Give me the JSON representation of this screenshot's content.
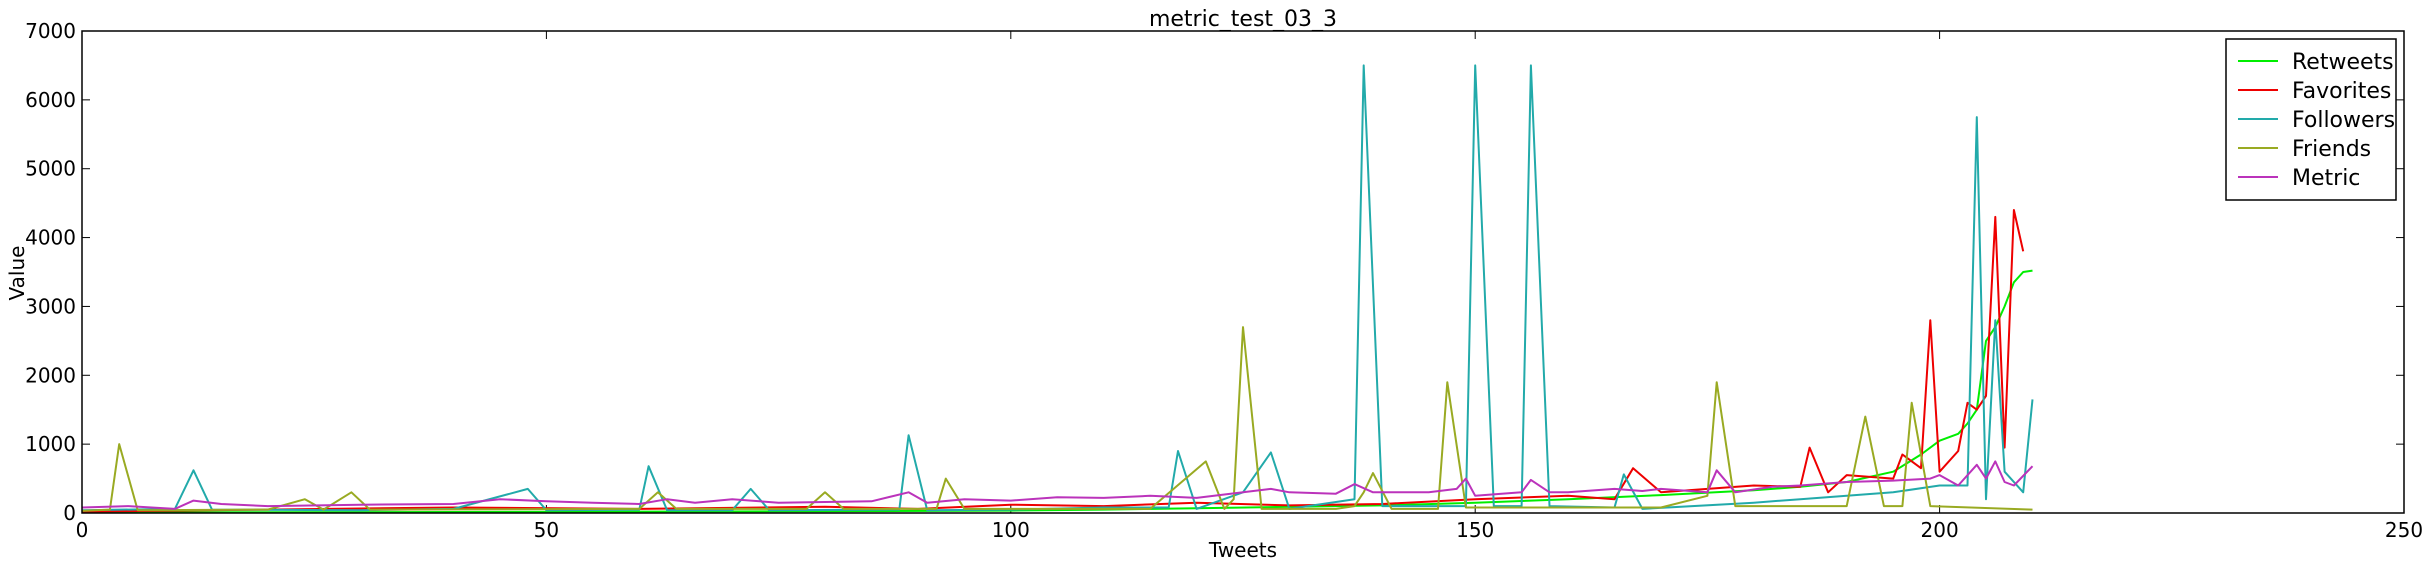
{
  "chart_data": {
    "type": "line",
    "title": "metric_test_03_3",
    "xlabel": "Tweets",
    "ylabel": "Value",
    "xlim": [
      0,
      250
    ],
    "ylim": [
      0,
      7000
    ],
    "xticks": [
      0,
      50,
      100,
      150,
      200,
      250
    ],
    "yticks": [
      0,
      1000,
      2000,
      3000,
      4000,
      5000,
      6000,
      7000
    ],
    "grid": false,
    "legend": "top-right",
    "series": [
      {
        "name": "Retweets",
        "color": "#00ee00",
        "points": [
          [
            0,
            10
          ],
          [
            20,
            12
          ],
          [
            40,
            15
          ],
          [
            60,
            20
          ],
          [
            80,
            25
          ],
          [
            100,
            35
          ],
          [
            110,
            50
          ],
          [
            120,
            70
          ],
          [
            130,
            90
          ],
          [
            140,
            110
          ],
          [
            150,
            150
          ],
          [
            160,
            200
          ],
          [
            170,
            260
          ],
          [
            180,
            330
          ],
          [
            185,
            380
          ],
          [
            190,
            450
          ],
          [
            195,
            600
          ],
          [
            198,
            850
          ],
          [
            200,
            1050
          ],
          [
            202,
            1150
          ],
          [
            203,
            1300
          ],
          [
            204,
            1500
          ],
          [
            205,
            2500
          ],
          [
            206,
            2700
          ],
          [
            207,
            3000
          ],
          [
            208,
            3350
          ],
          [
            209,
            3500
          ],
          [
            210,
            3520
          ]
        ]
      },
      {
        "name": "Favorites",
        "color": "#ee0000",
        "points": [
          [
            0,
            20
          ],
          [
            40,
            80
          ],
          [
            60,
            60
          ],
          [
            80,
            90
          ],
          [
            90,
            60
          ],
          [
            100,
            120
          ],
          [
            110,
            100
          ],
          [
            120,
            150
          ],
          [
            130,
            110
          ],
          [
            140,
            130
          ],
          [
            150,
            200
          ],
          [
            160,
            250
          ],
          [
            165,
            200
          ],
          [
            167,
            650
          ],
          [
            170,
            300
          ],
          [
            175,
            350
          ],
          [
            180,
            400
          ],
          [
            185,
            380
          ],
          [
            186,
            950
          ],
          [
            188,
            300
          ],
          [
            190,
            550
          ],
          [
            195,
            500
          ],
          [
            196,
            850
          ],
          [
            198,
            650
          ],
          [
            199,
            2800
          ],
          [
            200,
            600
          ],
          [
            202,
            900
          ],
          [
            203,
            1600
          ],
          [
            204,
            1500
          ],
          [
            205,
            1700
          ],
          [
            206,
            4300
          ],
          [
            207,
            950
          ],
          [
            208,
            4400
          ],
          [
            209,
            3800
          ]
        ]
      },
      {
        "name": "Followers",
        "color": "#22aaaa",
        "points": [
          [
            0,
            40
          ],
          [
            10,
            60
          ],
          [
            12,
            620
          ],
          [
            14,
            50
          ],
          [
            30,
            40
          ],
          [
            40,
            60
          ],
          [
            48,
            350
          ],
          [
            50,
            40
          ],
          [
            60,
            50
          ],
          [
            61,
            680
          ],
          [
            63,
            40
          ],
          [
            70,
            40
          ],
          [
            72,
            350
          ],
          [
            74,
            40
          ],
          [
            88,
            50
          ],
          [
            89,
            1130
          ],
          [
            91,
            40
          ],
          [
            100,
            50
          ],
          [
            110,
            80
          ],
          [
            117,
            80
          ],
          [
            118,
            900
          ],
          [
            120,
            60
          ],
          [
            125,
            300
          ],
          [
            128,
            880
          ],
          [
            130,
            60
          ],
          [
            137,
            200
          ],
          [
            138,
            6500
          ],
          [
            140,
            100
          ],
          [
            149,
            100
          ],
          [
            150,
            6500
          ],
          [
            152,
            100
          ],
          [
            155,
            100
          ],
          [
            156,
            6500
          ],
          [
            158,
            100
          ],
          [
            165,
            80
          ],
          [
            166,
            560
          ],
          [
            168,
            60
          ],
          [
            180,
            150
          ],
          [
            185,
            200
          ],
          [
            195,
            300
          ],
          [
            200,
            400
          ],
          [
            203,
            400
          ],
          [
            204,
            5750
          ],
          [
            205,
            200
          ],
          [
            206,
            2800
          ],
          [
            207,
            600
          ],
          [
            209,
            300
          ],
          [
            210,
            1650
          ]
        ]
      },
      {
        "name": "Friends",
        "color": "#99aa22",
        "points": [
          [
            0,
            30
          ],
          [
            3,
            50
          ],
          [
            4,
            1000
          ],
          [
            6,
            40
          ],
          [
            20,
            50
          ],
          [
            24,
            200
          ],
          [
            26,
            50
          ],
          [
            29,
            300
          ],
          [
            31,
            50
          ],
          [
            60,
            60
          ],
          [
            62,
            300
          ],
          [
            64,
            60
          ],
          [
            78,
            60
          ],
          [
            80,
            300
          ],
          [
            82,
            60
          ],
          [
            92,
            60
          ],
          [
            93,
            500
          ],
          [
            95,
            60
          ],
          [
            115,
            60
          ],
          [
            121,
            750
          ],
          [
            123,
            60
          ],
          [
            124,
            200
          ],
          [
            125,
            2700
          ],
          [
            127,
            60
          ],
          [
            135,
            60
          ],
          [
            137,
            100
          ],
          [
            138,
            300
          ],
          [
            139,
            580
          ],
          [
            141,
            60
          ],
          [
            146,
            60
          ],
          [
            147,
            1900
          ],
          [
            149,
            80
          ],
          [
            170,
            80
          ],
          [
            175,
            250
          ],
          [
            176,
            1900
          ],
          [
            178,
            100
          ],
          [
            190,
            100
          ],
          [
            192,
            1400
          ],
          [
            194,
            100
          ],
          [
            196,
            100
          ],
          [
            197,
            1600
          ],
          [
            199,
            100
          ],
          [
            210,
            50
          ]
        ]
      },
      {
        "name": "Metric",
        "color": "#bb33bb",
        "points": [
          [
            0,
            80
          ],
          [
            5,
            100
          ],
          [
            10,
            60
          ],
          [
            12,
            180
          ],
          [
            15,
            130
          ],
          [
            20,
            100
          ],
          [
            30,
            120
          ],
          [
            40,
            130
          ],
          [
            45,
            200
          ],
          [
            50,
            170
          ],
          [
            55,
            150
          ],
          [
            60,
            130
          ],
          [
            63,
            200
          ],
          [
            66,
            150
          ],
          [
            70,
            200
          ],
          [
            75,
            150
          ],
          [
            80,
            160
          ],
          [
            85,
            170
          ],
          [
            89,
            300
          ],
          [
            91,
            150
          ],
          [
            95,
            200
          ],
          [
            100,
            180
          ],
          [
            105,
            230
          ],
          [
            110,
            220
          ],
          [
            115,
            250
          ],
          [
            120,
            220
          ],
          [
            125,
            300
          ],
          [
            128,
            350
          ],
          [
            130,
            300
          ],
          [
            135,
            280
          ],
          [
            137,
            420
          ],
          [
            139,
            300
          ],
          [
            145,
            300
          ],
          [
            148,
            350
          ],
          [
            149,
            500
          ],
          [
            150,
            250
          ],
          [
            155,
            300
          ],
          [
            156,
            480
          ],
          [
            158,
            300
          ],
          [
            160,
            300
          ],
          [
            165,
            350
          ],
          [
            168,
            320
          ],
          [
            170,
            350
          ],
          [
            175,
            300
          ],
          [
            176,
            620
          ],
          [
            178,
            300
          ],
          [
            182,
            380
          ],
          [
            185,
            400
          ],
          [
            190,
            450
          ],
          [
            195,
            470
          ],
          [
            199,
            500
          ],
          [
            200,
            550
          ],
          [
            202,
            400
          ],
          [
            204,
            700
          ],
          [
            205,
            500
          ],
          [
            206,
            750
          ],
          [
            207,
            450
          ],
          [
            208,
            400
          ],
          [
            210,
            680
          ]
        ]
      }
    ]
  }
}
